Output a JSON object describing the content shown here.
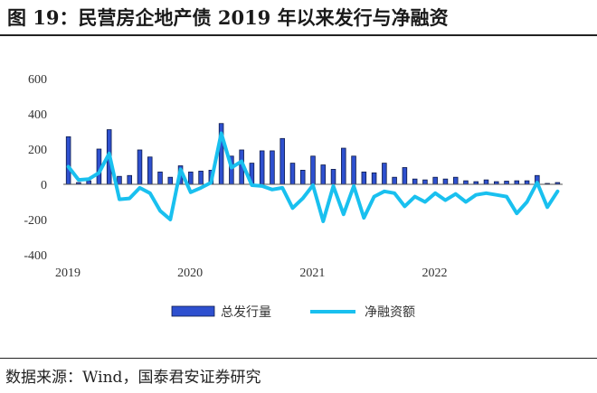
{
  "title": "图 19：民营房企地产债 2019 年以来发行与净融资",
  "source": "数据来源：Wind，国泰君安证券研究",
  "chart_data": {
    "type": "bar",
    "title": "图 19：民营房企地产债 2019 年以来发行与净融资",
    "xlabel": "",
    "ylabel": "",
    "ylim": [
      -400,
      600
    ],
    "yticks": [
      "600",
      "400",
      "200",
      "0",
      "-200",
      "-400"
    ],
    "xtick_labels": [
      "2019",
      "2020",
      "2021",
      "2022"
    ],
    "legend_position": "bottom",
    "grid": false,
    "series": [
      {
        "name": "总发行量",
        "type": "bar",
        "color": "#2e50cf",
        "values": [
          270,
          10,
          20,
          200,
          310,
          45,
          50,
          195,
          155,
          70,
          40,
          105,
          70,
          75,
          80,
          345,
          160,
          195,
          120,
          190,
          190,
          260,
          120,
          80,
          160,
          110,
          85,
          205,
          160,
          70,
          65,
          120,
          40,
          95,
          30,
          25,
          40,
          30,
          40,
          20,
          15,
          25,
          15,
          18,
          20,
          20,
          50,
          5,
          10
        ]
      },
      {
        "name": "净融资额",
        "type": "line",
        "color": "#19c0ef",
        "values": [
          100,
          25,
          30,
          65,
          175,
          -85,
          -80,
          -20,
          -50,
          -150,
          -200,
          85,
          -45,
          -20,
          10,
          290,
          95,
          130,
          -5,
          -10,
          -30,
          -20,
          -135,
          -80,
          -5,
          -210,
          -10,
          -170,
          -10,
          -190,
          -70,
          -40,
          -50,
          -125,
          -70,
          -100,
          -50,
          -90,
          -55,
          -100,
          -60,
          -50,
          -60,
          -70,
          -165,
          -100,
          10,
          -130,
          -40
        ]
      }
    ]
  }
}
